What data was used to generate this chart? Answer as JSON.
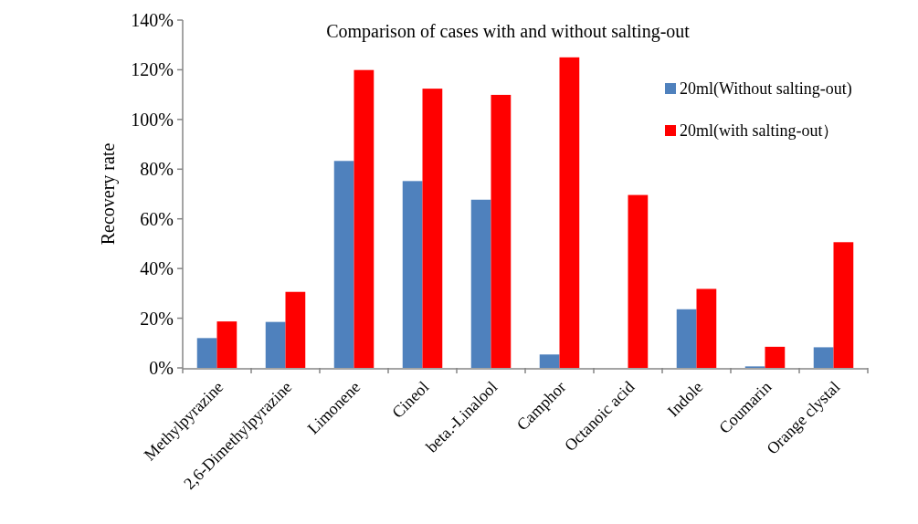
{
  "chart_data": {
    "type": "bar",
    "title": "Comparison of cases with and without salting-out",
    "ylabel": "Recovery rate",
    "categories": [
      "Methylpyrazine",
      "2,6-Dimethylpyrazine",
      "Limonene",
      "Cineol",
      "beta.-Linalool",
      "Camphor",
      "Octanoic acid",
      "Indole",
      "Coumarin",
      "Orange clystal"
    ],
    "series": [
      {
        "name": "20ml(Without salting-out)",
        "color": "#4f81bd",
        "values": [
          12.0,
          18.5,
          83.3,
          75.2,
          67.7,
          5.4,
          0,
          23.6,
          0.6,
          8.3
        ]
      },
      {
        "name": "20ml(with salting-out）",
        "color": "#ff0000",
        "values": [
          18.7,
          30.6,
          119.9,
          112.4,
          109.9,
          125.0,
          69.6,
          31.8,
          8.5,
          50.6
        ]
      }
    ],
    "ylim": [
      0,
      140
    ],
    "yticks": [
      {
        "value": 0,
        "label": "0%"
      },
      {
        "value": 20,
        "label": "20%"
      },
      {
        "value": 40,
        "label": "40%"
      },
      {
        "value": 60,
        "label": "60%"
      },
      {
        "value": 80,
        "label": "80%"
      },
      {
        "value": 100,
        "label": "100%"
      },
      {
        "value": 120,
        "label": "120%"
      },
      {
        "value": 140,
        "label": "140%"
      }
    ],
    "legend": "top right"
  }
}
